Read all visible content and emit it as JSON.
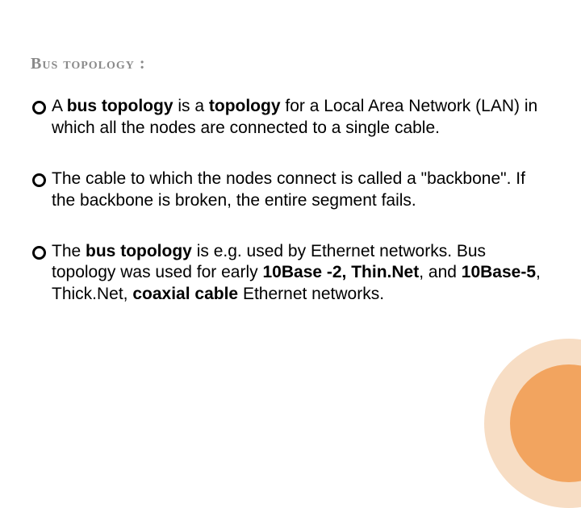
{
  "slide": {
    "title": "Bus topology  :",
    "title_color": "#8a8a8a",
    "title_fontsize": 20,
    "body_fontsize": 21,
    "body_lineheight": 1.28,
    "bullets": [
      {
        "prefix": "A ",
        "bold1": "bus topology",
        "mid1": " is a ",
        "bold2": "topology",
        "rest": " for a Local Area Network (LAN) in which all the nodes are connected to a single cable."
      },
      {
        "text": "The cable to which the nodes connect is called a \"backbone\". If the backbone is broken, the entire segment fails."
      },
      {
        "prefix": "The ",
        "bold1": "bus topology",
        "mid1": " is e.g. used by Ethernet networks.  Bus topology was used for early ",
        "bold2": "10Base -2, Thin.Net",
        "mid2": ", and ",
        "bold3": "10Base-5",
        "mid3": ", Thick.Net, ",
        "bold4": "coaxial cable",
        "rest": " Ethernet networks."
      }
    ]
  },
  "decoration": {
    "outer_color": "#f7ddc4",
    "inner_color": "#f2a45f"
  }
}
